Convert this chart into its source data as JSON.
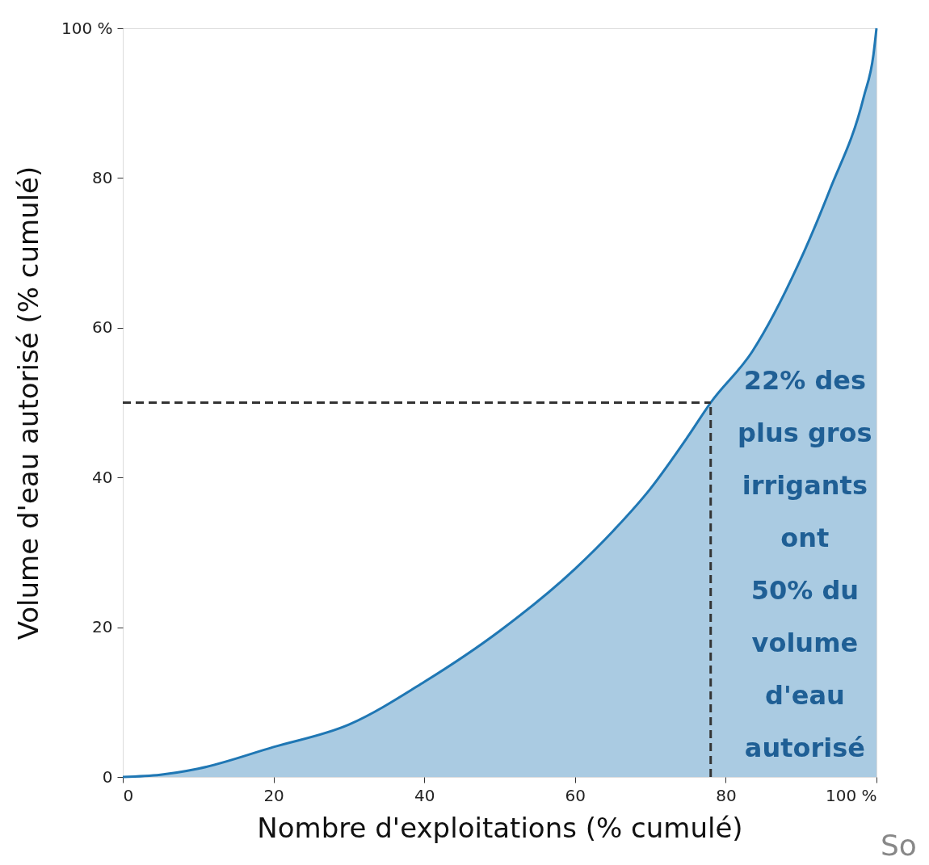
{
  "chart_data": {
    "type": "area",
    "xlabel": "Nombre d'exploitations (% cumulé)",
    "ylabel": "Volume d'eau autorisé (% cumulé)",
    "xlim": [
      0,
      100
    ],
    "ylim": [
      0,
      100
    ],
    "xticks": [
      0,
      20,
      40,
      60,
      80,
      {
        "value": 100,
        "label": "100 %"
      }
    ],
    "yticks": [
      0,
      20,
      40,
      60,
      80,
      {
        "value": 100,
        "label": "100 %"
      }
    ],
    "grid": false,
    "series": [
      {
        "type": "area",
        "color": "#1f77b4",
        "x": [
          0,
          5,
          10,
          20,
          30,
          40,
          50,
          60,
          65,
          70,
          75,
          78,
          83.5,
          89.6,
          93.8,
          98.3,
          99.6,
          100
        ],
        "values": [
          0,
          0.3,
          1.1,
          4.0,
          7.0,
          12.7,
          19.5,
          27.8,
          32.8,
          38.5,
          45.5,
          50,
          56.8,
          68.4,
          78.4,
          90.8,
          96.5,
          100
        ]
      },
      {
        "type": "line",
        "color": "#333333",
        "line_style": "dashed",
        "x": [
          0,
          78
        ],
        "values": [
          50,
          50
        ]
      },
      {
        "type": "line",
        "color": "#333333",
        "line_style": "dashed",
        "x": [
          78,
          78
        ],
        "values": [
          0,
          50
        ]
      }
    ],
    "annotations": [
      "22% des\nplus gros\nirrigants\nont\n50% du\nvolume\nd'eau\nautorisé",
      "So"
    ]
  }
}
